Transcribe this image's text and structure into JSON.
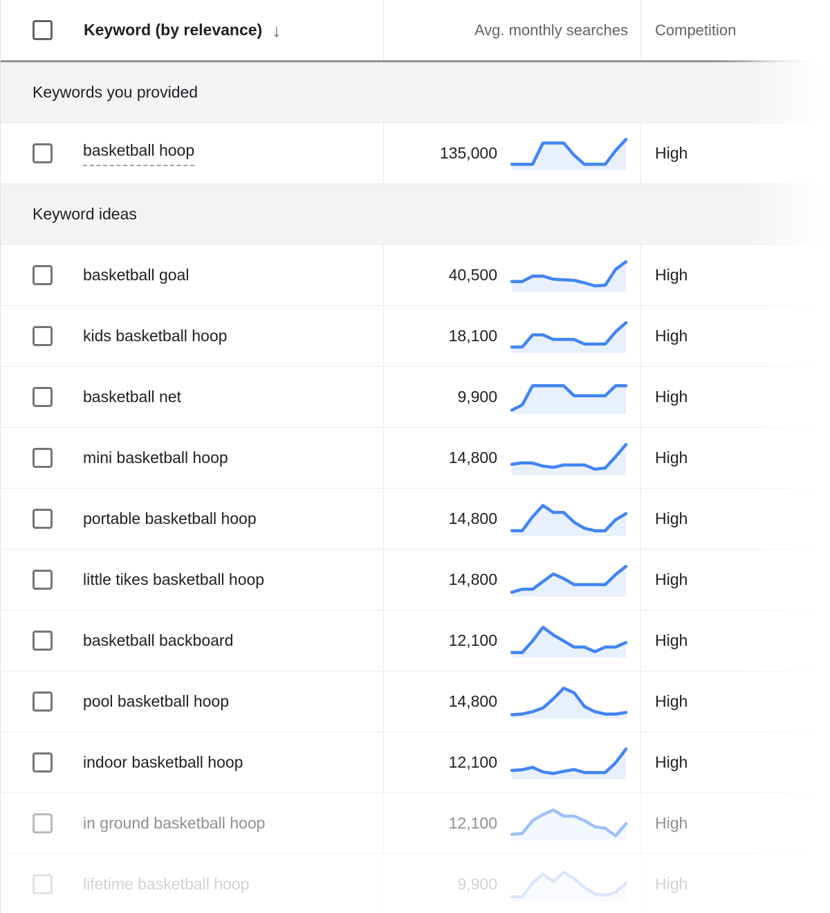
{
  "table": {
    "header": {
      "keyword_label": "Keyword (by relevance)",
      "sort_icon": "↓",
      "searches_label": "Avg. monthly searches",
      "competition_label": "Competition"
    },
    "sections": [
      {
        "label": "Keywords you provided",
        "rows": [
          {
            "keyword": "basketball hoop",
            "searches": "135,000",
            "competition": "High",
            "seed": true,
            "opacity": 1,
            "trend": [
              15,
              15,
              15,
              85,
              85,
              85,
              45,
              15,
              15,
              15,
              60,
              97
            ]
          }
        ]
      },
      {
        "label": "Keyword ideas",
        "rows": [
          {
            "keyword": "basketball goal",
            "searches": "40,500",
            "competition": "High",
            "seed": false,
            "opacity": 1,
            "trend": [
              30,
              30,
              48,
              48,
              38,
              36,
              34,
              26,
              16,
              18,
              70,
              95
            ]
          },
          {
            "keyword": "kids basketball hoop",
            "searches": "18,100",
            "competition": "High",
            "seed": false,
            "opacity": 1,
            "trend": [
              15,
              15,
              55,
              55,
              40,
              40,
              40,
              25,
              25,
              25,
              65,
              95
            ]
          },
          {
            "keyword": "basketball net",
            "searches": "9,900",
            "competition": "High",
            "seed": false,
            "opacity": 1,
            "trend": [
              8,
              25,
              88,
              88,
              88,
              88,
              55,
              55,
              55,
              55,
              88,
              88
            ]
          },
          {
            "keyword": "mini basketball hoop",
            "searches": "14,800",
            "competition": "High",
            "seed": false,
            "opacity": 1,
            "trend": [
              30,
              35,
              34,
              24,
              20,
              28,
              28,
              28,
              14,
              18,
              55,
              95
            ]
          },
          {
            "keyword": "portable basketball hoop",
            "searches": "14,800",
            "competition": "High",
            "seed": false,
            "opacity": 1,
            "trend": [
              12,
              12,
              58,
              95,
              72,
              72,
              40,
              20,
              12,
              12,
              48,
              68
            ]
          },
          {
            "keyword": "little tikes basketball hoop",
            "searches": "14,800",
            "competition": "High",
            "seed": false,
            "opacity": 1,
            "trend": [
              10,
              20,
              20,
              45,
              70,
              55,
              35,
              35,
              35,
              35,
              68,
              95
            ]
          },
          {
            "keyword": "basketball backboard",
            "searches": "12,100",
            "competition": "High",
            "seed": false,
            "opacity": 1,
            "trend": [
              12,
              12,
              50,
              95,
              70,
              50,
              30,
              30,
              15,
              30,
              30,
              45
            ]
          },
          {
            "keyword": "pool basketball hoop",
            "searches": "14,800",
            "competition": "High",
            "seed": false,
            "opacity": 1,
            "trend": [
              8,
              10,
              18,
              30,
              60,
              95,
              80,
              35,
              18,
              10,
              10,
              15
            ]
          },
          {
            "keyword": "indoor basketball hoop",
            "searches": "12,100",
            "competition": "High",
            "seed": false,
            "opacity": 1,
            "trend": [
              25,
              27,
              35,
              20,
              15,
              22,
              28,
              18,
              18,
              18,
              50,
              95
            ]
          },
          {
            "keyword": "in ground basketball hoop",
            "searches": "12,100",
            "competition": "High",
            "seed": false,
            "opacity": 0.5,
            "trend": [
              15,
              18,
              60,
              80,
              95,
              75,
              75,
              60,
              40,
              35,
              10,
              50
            ]
          },
          {
            "keyword": "lifetime basketball hoop",
            "searches": "9,900",
            "competition": "High",
            "seed": false,
            "opacity": 0.2,
            "trend": [
              10,
              10,
              55,
              85,
              60,
              90,
              70,
              40,
              20,
              15,
              25,
              55
            ]
          }
        ]
      }
    ]
  },
  "colors": {
    "sparkline_stroke": "#4285f4",
    "sparkline_fill": "rgba(66,133,244,0.12)",
    "section_bg": "#f1f3f4",
    "header_text_gray": "#5f6368",
    "text_dark": "#202124",
    "divider": "#e8eaed"
  }
}
